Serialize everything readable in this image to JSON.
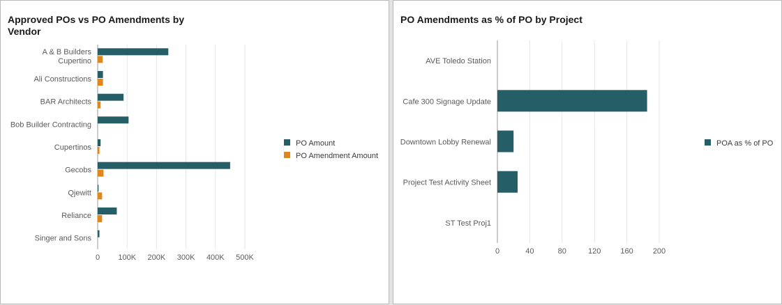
{
  "colors": {
    "primary": "#255e67",
    "secondary": "#e0861a",
    "grid": "#e6e6e6",
    "axis": "#9a9a9a",
    "label": "#5a5a5a"
  },
  "chart_data": [
    {
      "type": "bar",
      "orientation": "horizontal",
      "title": "Approved POs vs PO Amendments by Vendor",
      "categories": [
        "A & B Builders Cupertino",
        "Ali Constructions",
        "BAR Architects",
        "Bob Builder Contracting",
        "Cupertinos",
        "Gecobs",
        "Qjewitt",
        "Reliance",
        "Singer and Sons"
      ],
      "series": [
        {
          "name": "PO Amount",
          "color": "#255e67",
          "values": [
            240000,
            18000,
            88000,
            105000,
            10000,
            450000,
            3000,
            65000,
            6000
          ]
        },
        {
          "name": "PO Amendment Amount",
          "color": "#e0861a",
          "values": [
            17000,
            18000,
            10000,
            0,
            6000,
            20000,
            15000,
            15000,
            0
          ]
        }
      ],
      "xticks": [
        "0",
        "100K",
        "200K",
        "300K",
        "400K",
        "500K"
      ],
      "xlim": [
        0,
        500000
      ],
      "grid": true,
      "legend_position": "right"
    },
    {
      "type": "bar",
      "orientation": "horizontal",
      "title": "PO Amendments as % of PO by Project",
      "categories": [
        "AVE Toledo Station",
        "Cafe 300 Signage Update",
        "Downtown Lobby Renewal",
        "Project Test Activity Sheet",
        "ST Test Proj1"
      ],
      "series": [
        {
          "name": "POA as % of PO",
          "color": "#255e67",
          "values": [
            0,
            185,
            20,
            25,
            0
          ]
        }
      ],
      "xticks": [
        "0",
        "40",
        "80",
        "120",
        "160",
        "200"
      ],
      "xlim": [
        0,
        200
      ],
      "grid": true,
      "legend_position": "right"
    }
  ]
}
